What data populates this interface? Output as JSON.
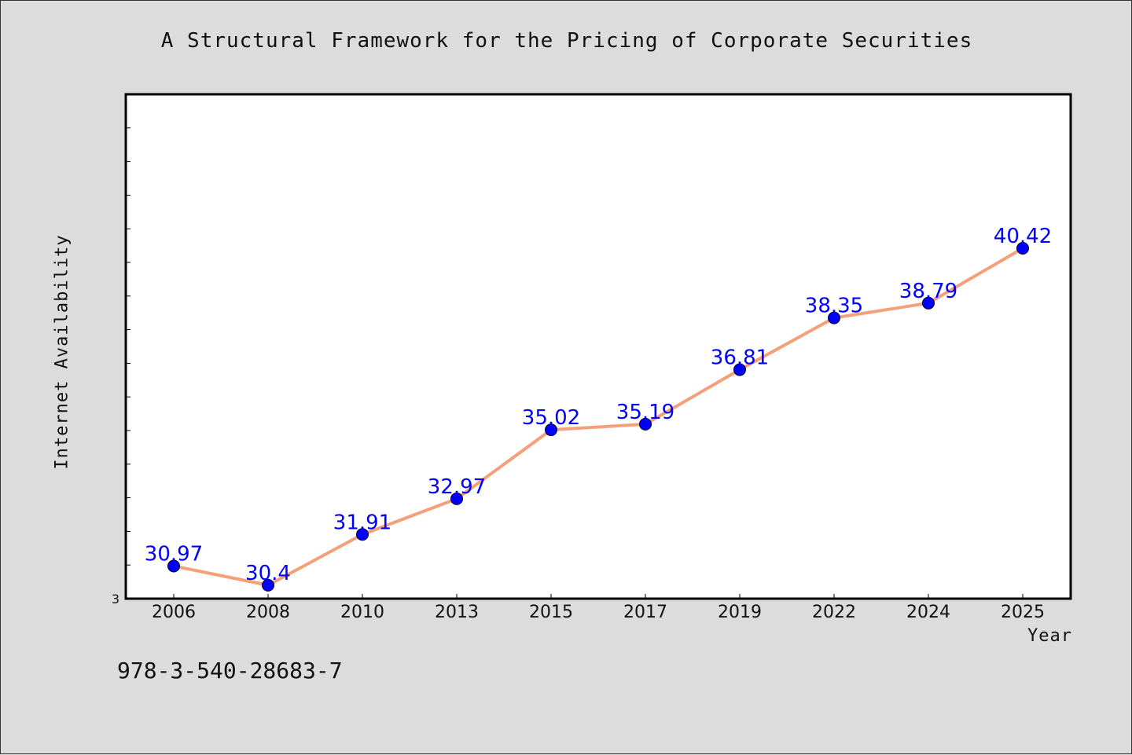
{
  "chart_data": {
    "type": "line",
    "title": "A Structural Framework for the Pricing of Corporate Securities",
    "xlabel": "Year",
    "ylabel": "Internet Availability",
    "categories": [
      "2006",
      "2008",
      "2010",
      "2013",
      "2015",
      "2017",
      "2019",
      "2022",
      "2024",
      "2025"
    ],
    "values": [
      30.97,
      30.4,
      31.91,
      32.97,
      35.02,
      35.19,
      36.81,
      38.35,
      38.79,
      40.42
    ],
    "value_labels": [
      "30.97",
      "30.4",
      "31.91",
      "32.97",
      "35.02",
      "35.19",
      "36.81",
      "38.35",
      "38.79",
      "40.42"
    ],
    "ylim": [
      30,
      45
    ],
    "y_min_label": "3",
    "grid": false,
    "legend": "none",
    "colors": {
      "line": "#f4a07a",
      "marker": "#0000ff",
      "data_label": "#0000ff",
      "plot_background": "#ffffff",
      "figure_background": "#dcdcdc"
    }
  },
  "footer": {
    "isbn": "978-3-540-28683-7"
  }
}
